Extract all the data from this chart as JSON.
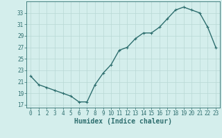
{
  "x": [
    0,
    1,
    2,
    3,
    4,
    5,
    6,
    7,
    8,
    9,
    10,
    11,
    12,
    13,
    14,
    15,
    16,
    17,
    18,
    19,
    20,
    21,
    22,
    23
  ],
  "y": [
    22,
    20.5,
    20,
    19.5,
    19,
    18.5,
    17.5,
    17.5,
    20.5,
    22.5,
    24,
    26.5,
    27,
    28.5,
    29.5,
    29.5,
    30.5,
    32,
    33.5,
    34,
    33.5,
    33,
    30.5,
    27
  ],
  "line_color": "#2d6e6e",
  "marker": "+",
  "bg_color": "#d4eeec",
  "grid_color": "#b8d8d4",
  "xlabel": "Humidex (Indice chaleur)",
  "ylim": [
    16.5,
    35
  ],
  "xlim": [
    -0.5,
    23.5
  ],
  "yticks": [
    17,
    19,
    21,
    23,
    25,
    27,
    29,
    31,
    33
  ],
  "xticks": [
    0,
    1,
    2,
    3,
    4,
    5,
    6,
    7,
    8,
    9,
    10,
    11,
    12,
    13,
    14,
    15,
    16,
    17,
    18,
    19,
    20,
    21,
    22,
    23
  ],
  "tick_label_fontsize": 5.5,
  "xlabel_fontsize": 7.0,
  "line_width": 1.0,
  "marker_size": 3.0,
  "marker_ew": 0.8
}
